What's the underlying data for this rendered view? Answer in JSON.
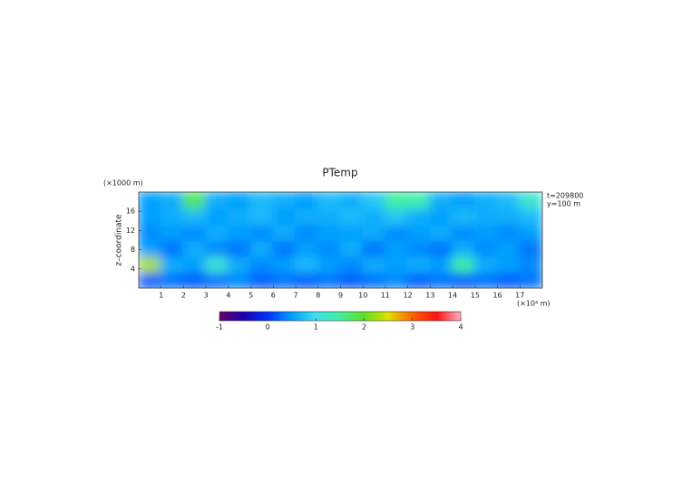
{
  "chart_data": {
    "type": "heatmap",
    "title": "PTemp",
    "y_unit_label": "(×1000 m)",
    "y_label": "z–coordinate",
    "x_unit_label": "(×10⁴ m)",
    "annotations": [
      "t=209800",
      "y=100 m"
    ],
    "xlim": [
      0,
      18
    ],
    "xticks": [
      1,
      2,
      3,
      4,
      5,
      6,
      7,
      8,
      9,
      10,
      11,
      12,
      13,
      14,
      15,
      16,
      17
    ],
    "ylim": [
      0,
      20
    ],
    "yticks": [
      4,
      8,
      12,
      16
    ],
    "z": [
      [
        0.2,
        0.3,
        0.2,
        0.3,
        0.4,
        0.2,
        0.3,
        0.2,
        0.3,
        0.2,
        0.3,
        0.4,
        0.2,
        0.3,
        0.2,
        0.3,
        0.2,
        0.3
      ],
      [
        2.3,
        0.6,
        0.5,
        1.2,
        0.6,
        0.4,
        0.5,
        0.7,
        0.5,
        0.4,
        0.6,
        0.5,
        0.6,
        0.5,
        1.5,
        0.6,
        0.5,
        0.4
      ],
      [
        0.5,
        0.3,
        0.6,
        0.4,
        0.3,
        0.6,
        0.3,
        0.5,
        0.4,
        0.6,
        0.3,
        0.5,
        0.4,
        0.3,
        0.6,
        0.4,
        0.5,
        0.3
      ],
      [
        0.4,
        0.5,
        0.4,
        0.6,
        0.5,
        0.4,
        0.6,
        0.4,
        0.5,
        0.5,
        0.6,
        0.4,
        0.5,
        0.6,
        0.4,
        0.5,
        0.4,
        0.5
      ],
      [
        0.5,
        0.6,
        0.7,
        0.5,
        0.6,
        0.7,
        0.5,
        0.6,
        0.6,
        0.7,
        0.6,
        0.8,
        0.6,
        0.5,
        0.7,
        0.6,
        0.6,
        0.7
      ],
      [
        0.5,
        0.6,
        1.8,
        0.6,
        0.5,
        0.7,
        0.6,
        0.5,
        0.7,
        0.6,
        0.8,
        1.5,
        1.4,
        0.6,
        0.5,
        0.6,
        0.7,
        1.2
      ]
    ],
    "clim": [
      -1,
      4
    ],
    "colorbar_ticks": [
      -1,
      0,
      1,
      2,
      3,
      4
    ],
    "colorscale": [
      [
        -1,
        "#6a006a"
      ],
      [
        -0.5,
        "#1a00b0"
      ],
      [
        0,
        "#0030ff"
      ],
      [
        0.5,
        "#00a0ff"
      ],
      [
        1,
        "#40e0f0"
      ],
      [
        1.5,
        "#40f0a0"
      ],
      [
        2,
        "#60e020"
      ],
      [
        2.5,
        "#e0e000"
      ],
      [
        3,
        "#ff6000"
      ],
      [
        3.5,
        "#ff1010"
      ],
      [
        4,
        "#ffb0c0"
      ]
    ]
  }
}
